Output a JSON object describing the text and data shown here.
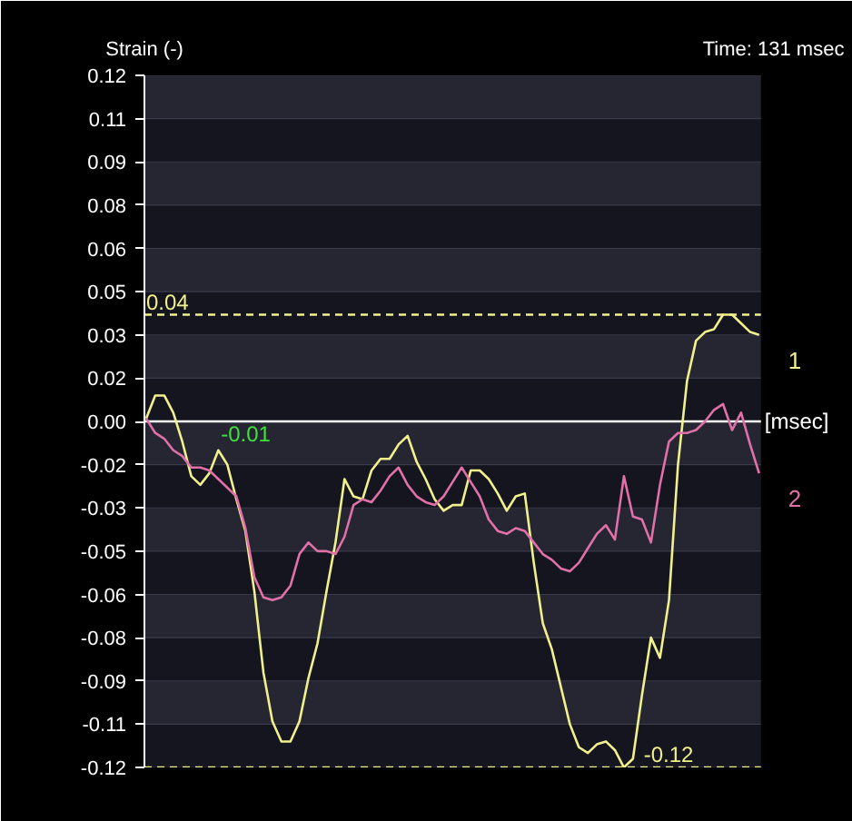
{
  "chart_data": {
    "type": "line",
    "subtitle": "Time: 131 msec",
    "ylabel": "Strain (-)",
    "xlabel": "[msec]",
    "categories": [
      null,
      null,
      null,
      null,
      null,
      null,
      null,
      null,
      null,
      null,
      null,
      null,
      null,
      null,
      null,
      null,
      null,
      null,
      null,
      null,
      null,
      null,
      null,
      null,
      null,
      null,
      null,
      null,
      null,
      null,
      null,
      null,
      null,
      null,
      null,
      null,
      null,
      null,
      null,
      null,
      null,
      null,
      null,
      null,
      null,
      null,
      null,
      null,
      null,
      null,
      null,
      null,
      null,
      null,
      null,
      null,
      null,
      null,
      null,
      null,
      null,
      null,
      null,
      null,
      null,
      null,
      null,
      null,
      null
    ],
    "series": [
      {
        "name": "1",
        "color": "#f0f08c",
        "values": [
          0.001,
          0.009,
          0.009,
          0.003,
          -0.007,
          -0.019,
          -0.022,
          -0.018,
          -0.01,
          -0.015,
          -0.027,
          -0.038,
          -0.059,
          -0.087,
          -0.104,
          -0.111,
          -0.111,
          -0.104,
          -0.089,
          -0.077,
          -0.059,
          -0.042,
          -0.02,
          -0.026,
          -0.027,
          -0.017,
          -0.013,
          -0.013,
          -0.008,
          -0.005,
          -0.014,
          -0.02,
          -0.027,
          -0.031,
          -0.029,
          -0.029,
          -0.017,
          -0.017,
          -0.02,
          -0.025,
          -0.031,
          -0.026,
          -0.025,
          -0.049,
          -0.07,
          -0.079,
          -0.092,
          -0.105,
          -0.113,
          -0.115,
          -0.112,
          -0.111,
          -0.114,
          -0.12,
          -0.117,
          -0.095,
          -0.075,
          -0.082,
          -0.062,
          -0.015,
          0.014,
          0.028,
          0.031,
          0.032,
          0.037,
          0.037,
          0.034,
          0.031,
          0.03
        ]
      },
      {
        "name": "2",
        "color": "#e070a8",
        "values": [
          0.001,
          -0.004,
          -0.006,
          -0.01,
          -0.012,
          -0.016,
          -0.016,
          -0.017,
          -0.02,
          -0.023,
          -0.026,
          -0.037,
          -0.054,
          -0.061,
          -0.062,
          -0.061,
          -0.057,
          -0.046,
          -0.042,
          -0.045,
          -0.045,
          -0.046,
          -0.04,
          -0.029,
          -0.027,
          -0.028,
          -0.024,
          -0.019,
          -0.016,
          -0.022,
          -0.026,
          -0.028,
          -0.029,
          -0.026,
          -0.021,
          -0.016,
          -0.021,
          -0.026,
          -0.034,
          -0.038,
          -0.039,
          -0.037,
          -0.038,
          -0.042,
          -0.046,
          -0.048,
          -0.051,
          -0.052,
          -0.049,
          -0.044,
          -0.039,
          -0.036,
          -0.041,
          -0.019,
          -0.033,
          -0.034,
          -0.042,
          -0.022,
          -0.007,
          -0.004,
          -0.004,
          -0.003,
          0.0,
          0.004,
          0.006,
          -0.003,
          0.003,
          -0.008,
          -0.018
        ]
      }
    ],
    "ylim": [
      -0.12,
      0.12
    ],
    "yticks": [
      {
        "value": 0.12,
        "label": "0.12"
      },
      {
        "value": 0.105,
        "label": "0.11"
      },
      {
        "value": 0.09,
        "label": "0.09"
      },
      {
        "value": 0.075,
        "label": "0.08"
      },
      {
        "value": 0.06,
        "label": "0.06"
      },
      {
        "value": 0.045,
        "label": "0.05"
      },
      {
        "value": 0.03,
        "label": "0.03"
      },
      {
        "value": 0.015,
        "label": "0.02"
      },
      {
        "value": 0,
        "label": "0.00"
      },
      {
        "value": -0.015,
        "label": "-0.02"
      },
      {
        "value": -0.03,
        "label": "-0.03"
      },
      {
        "value": -0.045,
        "label": "-0.05"
      },
      {
        "value": -0.06,
        "label": "-0.06"
      },
      {
        "value": -0.075,
        "label": "-0.08"
      },
      {
        "value": -0.09,
        "label": "-0.09"
      },
      {
        "value": -0.105,
        "label": "-0.11"
      },
      {
        "value": -0.12,
        "label": "-0.12"
      }
    ],
    "ref_lines": [
      {
        "axis": "y",
        "value": 0,
        "color": "#ffffff",
        "line_style": "solid"
      },
      {
        "axis": "y",
        "value": 0.037,
        "label": "0.04",
        "color": "#f0f08c",
        "line_style": "dashed"
      },
      {
        "axis": "y",
        "value": -0.12,
        "label": "-0.12",
        "color": "#f0f08c",
        "line_style": "dashed"
      }
    ],
    "annotations": [
      "-0.01"
    ],
    "grid": "y",
    "tick_labels": "y",
    "marker": "none",
    "line_style": "solid"
  }
}
